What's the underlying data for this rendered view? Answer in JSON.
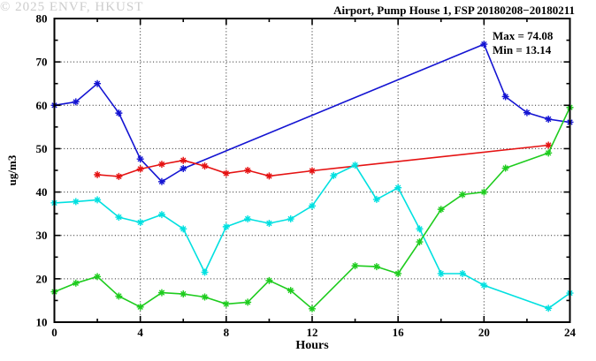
{
  "chart_data": {
    "type": "line",
    "title": "Airport, Pump House 1, FSP 20180208−20180211",
    "xlabel": "Hours",
    "ylabel": "ug/m3",
    "xlim": [
      0,
      24
    ],
    "ylim": [
      10,
      80
    ],
    "x_major_ticks": [
      0,
      4,
      8,
      12,
      16,
      20,
      24
    ],
    "x_minor_ticks": [
      2,
      6,
      10,
      14,
      18,
      22
    ],
    "y_major_ticks": [
      10,
      20,
      30,
      40,
      50,
      60,
      70,
      80
    ],
    "y_minor_ticks": [
      15,
      25,
      35,
      45,
      55,
      65,
      75
    ],
    "grid": "dotted at major ticks",
    "legend": "none",
    "annotations": {
      "max_label": "Max = 74.08",
      "min_label": "Min = 13.14"
    },
    "watermark": "© 2025 ENVF, HKUST",
    "series": [
      {
        "name": "blue",
        "color": "#1414d2",
        "points": [
          [
            0,
            60
          ],
          [
            1,
            60.8
          ],
          [
            2,
            65
          ],
          [
            3,
            58.2
          ],
          [
            4,
            47.6
          ],
          [
            5,
            42.4
          ],
          [
            6,
            45.4
          ],
          [
            20,
            74.08
          ],
          [
            21,
            62
          ],
          [
            22,
            58.3
          ],
          [
            23,
            56.8
          ],
          [
            24,
            56.1
          ]
        ]
      },
      {
        "name": "red",
        "color": "#e51212",
        "points": [
          [
            2,
            44
          ],
          [
            3,
            43.6
          ],
          [
            4,
            45.3
          ],
          [
            5,
            46.4
          ],
          [
            6,
            47.3
          ],
          [
            7,
            46
          ],
          [
            8,
            44.3
          ],
          [
            9,
            45
          ],
          [
            10,
            43.7
          ],
          [
            12,
            44.9
          ],
          [
            23,
            50.8
          ]
        ]
      },
      {
        "name": "cyan",
        "color": "#00e0e0",
        "points": [
          [
            0,
            37.5
          ],
          [
            1,
            37.8
          ],
          [
            2,
            38.2
          ],
          [
            3,
            34.2
          ],
          [
            4,
            33
          ],
          [
            5,
            34.8
          ],
          [
            6,
            31.5
          ],
          [
            7,
            21.5
          ],
          [
            8,
            32
          ],
          [
            9,
            33.8
          ],
          [
            10,
            32.8
          ],
          [
            11,
            33.8
          ],
          [
            12,
            36.8
          ],
          [
            13,
            43.8
          ],
          [
            14,
            46.2
          ],
          [
            15,
            38.3
          ],
          [
            16,
            41
          ],
          [
            17,
            31.5
          ],
          [
            18,
            21.2
          ],
          [
            19,
            21.2
          ],
          [
            20,
            18.5
          ],
          [
            23,
            13.2
          ],
          [
            24,
            16.7
          ]
        ]
      },
      {
        "name": "green",
        "color": "#1ecc1e",
        "points": [
          [
            0,
            17
          ],
          [
            1,
            19
          ],
          [
            2,
            20.5
          ],
          [
            3,
            16
          ],
          [
            4,
            13.5
          ],
          [
            5,
            16.8
          ],
          [
            6,
            16.5
          ],
          [
            7,
            15.8
          ],
          [
            8,
            14.2
          ],
          [
            9,
            14.6
          ],
          [
            10,
            19.6
          ],
          [
            11,
            17.3
          ],
          [
            12,
            13.1
          ],
          [
            14,
            23
          ],
          [
            15,
            22.8
          ],
          [
            16,
            21.2
          ],
          [
            17,
            28.5
          ],
          [
            18,
            36
          ],
          [
            19,
            39.4
          ],
          [
            20,
            40
          ],
          [
            21,
            45.5
          ],
          [
            23,
            49
          ],
          [
            24,
            59.5
          ]
        ]
      }
    ]
  }
}
